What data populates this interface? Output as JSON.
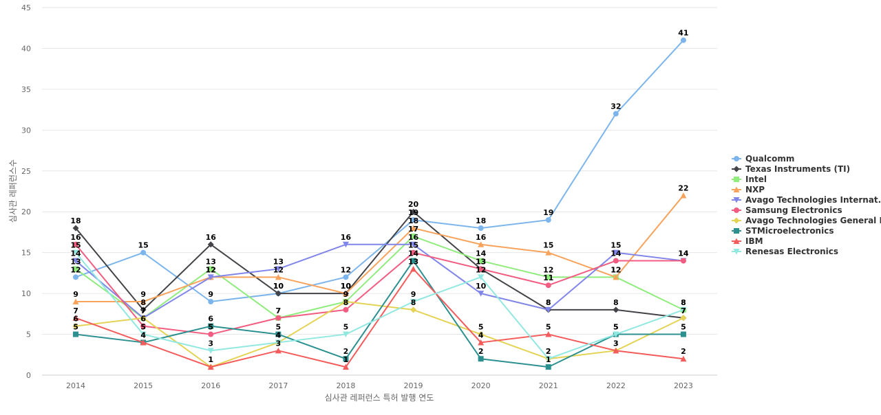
{
  "chart_data": {
    "type": "line",
    "title": "",
    "xlabel": "심사관 레퍼런스 특허 발행 연도",
    "ylabel": "심사관 레퍼런스수",
    "ylim": [
      0,
      45
    ],
    "yticks": [
      0,
      5,
      10,
      15,
      20,
      25,
      30,
      35,
      40,
      45
    ],
    "grid": true,
    "legend_position": "right",
    "categories": [
      "2014",
      "2015",
      "2016",
      "2017",
      "2018",
      "2019",
      "2020",
      "2021",
      "2022",
      "2023"
    ],
    "series": [
      {
        "name": "Qualcomm",
        "color": "#7cb5ec",
        "marker": "circle",
        "values": [
          12,
          15,
          9,
          10,
          12,
          19,
          18,
          19,
          32,
          41
        ]
      },
      {
        "name": "Texas Instruments (TI)",
        "color": "#434348",
        "marker": "diamond",
        "values": [
          18,
          8,
          16,
          10,
          10,
          20,
          13,
          8,
          8,
          7
        ]
      },
      {
        "name": "Intel",
        "color": "#90ed7d",
        "marker": "square",
        "values": [
          13,
          7,
          13,
          7,
          9,
          17,
          14,
          12,
          12,
          8
        ]
      },
      {
        "name": "NXP",
        "color": "#f7a35c",
        "marker": "triangle",
        "values": [
          9,
          9,
          12,
          12,
          10,
          18,
          16,
          15,
          12,
          22
        ]
      },
      {
        "name": "Avago Technologies Internat...",
        "color": "#8085e9",
        "marker": "triangle-down",
        "values": [
          14,
          7,
          12,
          13,
          16,
          16,
          10,
          8,
          15,
          14
        ]
      },
      {
        "name": "Samsung Electronics",
        "color": "#f15c80",
        "marker": "circle",
        "values": [
          16,
          6,
          5,
          7,
          8,
          15,
          13,
          11,
          14,
          14
        ]
      },
      {
        "name": "Avago Technologies General IP",
        "color": "#e4d354",
        "marker": "diamond",
        "values": [
          6,
          7,
          1,
          4,
          9,
          8,
          5,
          2,
          3,
          7
        ]
      },
      {
        "name": "STMicroelectronics",
        "color": "#2b908f",
        "marker": "square",
        "values": [
          5,
          4,
          6,
          5,
          2,
          14,
          2,
          1,
          5,
          5
        ]
      },
      {
        "name": "IBM",
        "color": "#f45b5b",
        "marker": "triangle",
        "values": [
          7,
          4,
          1,
          3,
          1,
          13,
          4,
          5,
          3,
          2
        ]
      },
      {
        "name": "Renesas Electronics",
        "color": "#91e8e1",
        "marker": "triangle-down",
        "values": [
          15,
          5,
          3,
          4,
          5,
          9,
          12,
          2,
          5,
          8
        ]
      }
    ]
  }
}
